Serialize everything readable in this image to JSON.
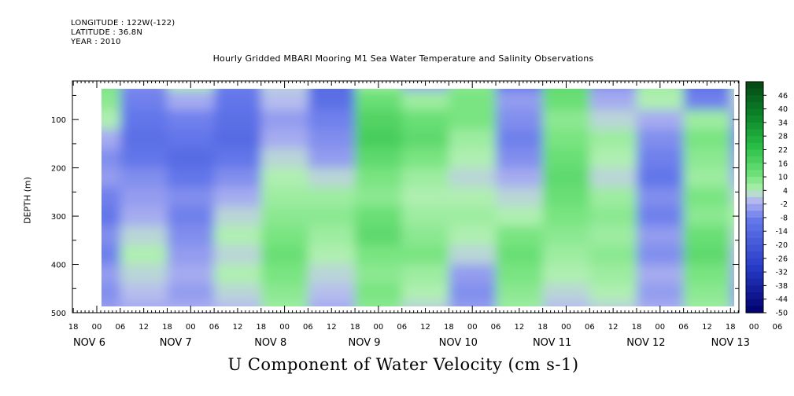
{
  "header": {
    "longitude": "LONGITUDE : 122W(-122)",
    "latitude": "LATITUDE : 36.8N",
    "year": "YEAR : 2010"
  },
  "chart_data": {
    "type": "heatmap",
    "title": "Hourly Gridded MBARI Mooring M1 Sea Water Temperature and Salinity Observations",
    "xlabel": "U Component of Water Velocity (cm s-1)",
    "ylabel": "DEPTH (m)",
    "x_axis": {
      "start_hour_label": "18",
      "hour_labels": [
        "18",
        "00",
        "06",
        "12",
        "18",
        "00",
        "06",
        "12",
        "18",
        "00",
        "06",
        "12",
        "18",
        "00",
        "06",
        "12",
        "18",
        "00",
        "06",
        "12",
        "18",
        "00",
        "06",
        "12",
        "18",
        "00",
        "06",
        "12",
        "18",
        "00",
        "06",
        "12",
        "18",
        "00",
        "06",
        "12",
        "18"
      ],
      "day_labels": [
        "NOV  6",
        "NOV  7",
        "NOV  8",
        "NOV  9",
        "NOV 10",
        "NOV 11",
        "NOV 12",
        "NOV 13"
      ],
      "data_start": "NOV 6 00",
      "data_end": "NOV 13 18"
    },
    "y_axis": {
      "ylim": [
        500,
        20
      ],
      "inverted": true,
      "ticks": [
        100,
        200,
        300,
        400,
        500
      ]
    },
    "colorbar": {
      "levels": [
        46,
        40,
        34,
        28,
        22,
        16,
        10,
        4,
        -2,
        -8,
        -14,
        -20,
        -26,
        -32,
        -38,
        -44,
        -50
      ],
      "range": [
        -50,
        52
      ]
    },
    "depth_rows": [
      20,
      60,
      100,
      140,
      180,
      220,
      260,
      300,
      340,
      380,
      420,
      460,
      490
    ],
    "time_columns_days": [
      0.0,
      0.5,
      1.0,
      1.5,
      2.0,
      2.5,
      3.0,
      3.5,
      4.0,
      4.5,
      5.0,
      5.5,
      6.0,
      6.5,
      7.0,
      7.5
    ],
    "values": [
      [
        10,
        -6,
        4,
        -8,
        2,
        -14,
        6,
        -4,
        8,
        -10,
        14,
        -6,
        6,
        -12,
        4,
        -16
      ],
      [
        8,
        -8,
        -2,
        -10,
        0,
        -12,
        12,
        6,
        10,
        -4,
        12,
        -2,
        4,
        -8,
        2,
        -12
      ],
      [
        4,
        -10,
        -8,
        -12,
        -4,
        -8,
        16,
        12,
        10,
        -6,
        8,
        2,
        -2,
        6,
        -4,
        -8
      ],
      [
        -2,
        -12,
        -10,
        -14,
        -2,
        -6,
        18,
        14,
        6,
        -8,
        10,
        6,
        -6,
        10,
        -6,
        -4
      ],
      [
        -6,
        -10,
        -14,
        -10,
        2,
        -4,
        14,
        10,
        4,
        -6,
        12,
        4,
        -8,
        8,
        -4,
        2
      ],
      [
        -4,
        -6,
        -10,
        -6,
        4,
        2,
        10,
        6,
        2,
        -2,
        14,
        2,
        -10,
        6,
        -2,
        4
      ],
      [
        -8,
        -4,
        -6,
        -2,
        6,
        6,
        8,
        4,
        4,
        2,
        12,
        6,
        -6,
        10,
        2,
        6
      ],
      [
        -10,
        -2,
        -8,
        2,
        8,
        8,
        12,
        6,
        6,
        4,
        10,
        8,
        -8,
        8,
        4,
        4
      ],
      [
        -6,
        2,
        -6,
        4,
        10,
        6,
        14,
        8,
        4,
        10,
        8,
        6,
        -4,
        12,
        2,
        2
      ],
      [
        -8,
        4,
        -4,
        2,
        12,
        4,
        10,
        10,
        2,
        12,
        6,
        8,
        -6,
        14,
        0,
        0
      ],
      [
        -4,
        2,
        -2,
        4,
        10,
        2,
        8,
        6,
        -4,
        10,
        4,
        6,
        -2,
        10,
        -2,
        2
      ],
      [
        -6,
        0,
        -4,
        2,
        8,
        0,
        10,
        4,
        -6,
        8,
        2,
        4,
        -4,
        8,
        -4,
        0
      ],
      [
        -4,
        -2,
        -2,
        0,
        6,
        -2,
        8,
        2,
        -4,
        6,
        0,
        2,
        -2,
        6,
        -2,
        -2
      ]
    ]
  }
}
